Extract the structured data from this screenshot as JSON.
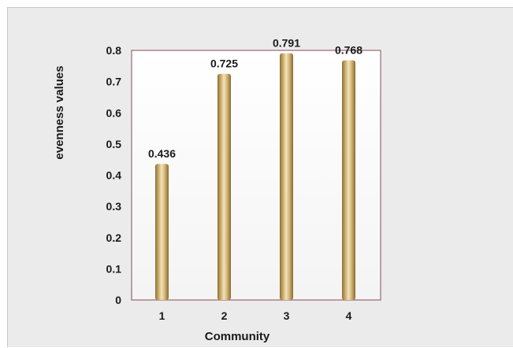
{
  "chart_data": {
    "type": "bar",
    "categories": [
      "1",
      "2",
      "3",
      "4"
    ],
    "values": [
      0.436,
      0.725,
      0.791,
      0.768
    ],
    "data_labels": [
      "0.436",
      "0.725",
      "0.791",
      "0.768"
    ],
    "xlabel": "Community",
    "ylabel": "evenness values",
    "ylim": [
      0,
      0.8
    ],
    "yticks": [
      "0",
      "0.1",
      "0.2",
      "0.3",
      "0.4",
      "0.5",
      "0.6",
      "0.7",
      "0.8"
    ],
    "grid": false,
    "legend": "none",
    "colors": {
      "bar_light": "#f4e3b8",
      "bar_mid": "#d1b376",
      "bar_dark": "#8f6f30",
      "plot_border": "#8a4a5a",
      "figure_background": "#ebebeb",
      "plot_background": "#fbfbfb"
    }
  }
}
